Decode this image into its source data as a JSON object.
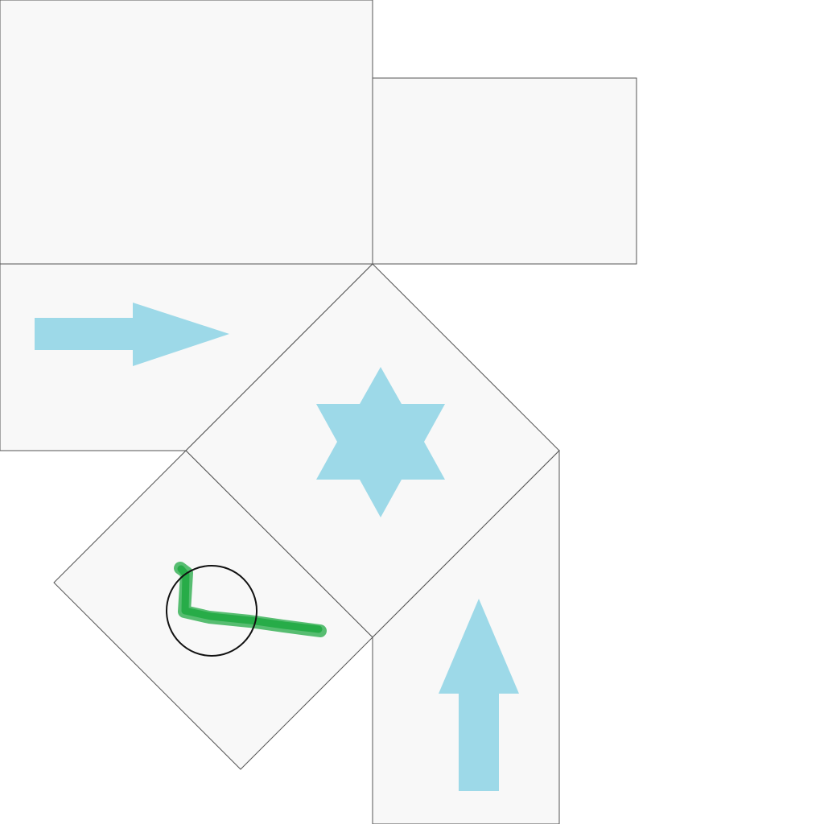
{
  "board": {
    "background": "#ffffff",
    "tile_fill": "#f8f8f8",
    "tile_stroke": "#555555"
  },
  "tiles": [
    {
      "id": "tile-top-left",
      "content": "empty"
    },
    {
      "id": "tile-top-right",
      "content": "empty"
    },
    {
      "id": "tile-arrow-right",
      "content": "arrow-right-icon"
    },
    {
      "id": "tile-star",
      "content": "six-pointed-star-icon"
    },
    {
      "id": "tile-drawing",
      "content": "drawn-stroke-with-circle"
    },
    {
      "id": "tile-arrow-up",
      "content": "arrow-up-icon"
    }
  ],
  "icons": {
    "arrow_color": "#9dd9e8",
    "star_color": "#9dd9e8"
  },
  "drawing": {
    "stroke_color": "#22aa44",
    "circle_color": "#111111"
  }
}
